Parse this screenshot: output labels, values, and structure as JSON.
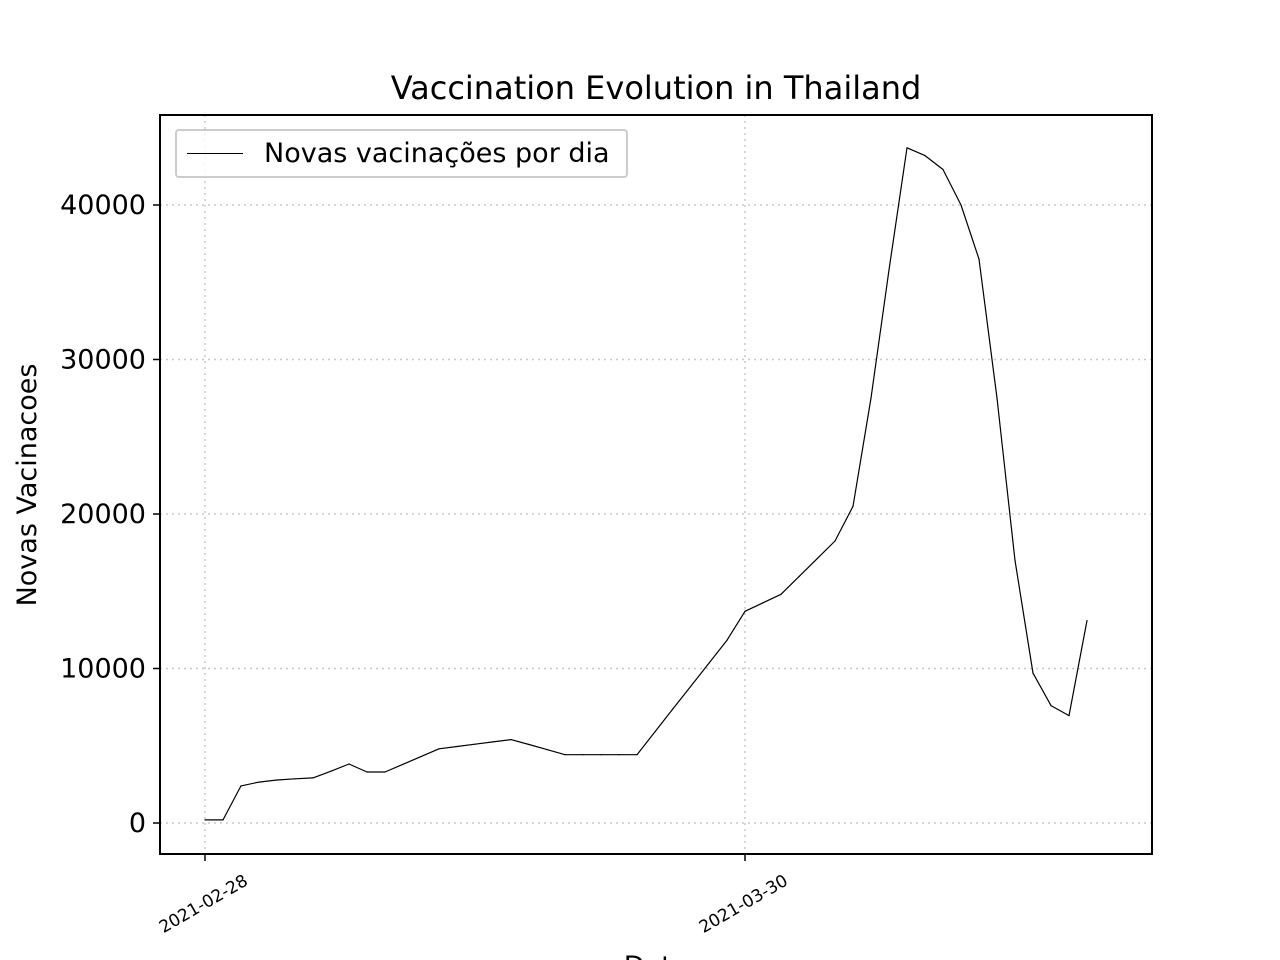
{
  "chart_data": {
    "type": "line",
    "title": "Vaccination Evolution in Thailand",
    "xlabel": "Data",
    "ylabel": "Novas Vacinacoes",
    "x_tick_labels": [
      "2021-02-28",
      "2021-03-30"
    ],
    "y_tick_labels": [
      "0",
      "10000",
      "20000",
      "30000",
      "40000"
    ],
    "ylim": [
      -2000,
      45800
    ],
    "grid": true,
    "legend_position": "upper-left",
    "series": [
      {
        "name": "Novas vacinações por dia",
        "color": "#000000",
        "points": [
          [
            "2021-02-28",
            200
          ],
          [
            "2021-03-01",
            200
          ],
          [
            "2021-03-02",
            2400
          ],
          [
            "2021-03-03",
            2650
          ],
          [
            "2021-03-04",
            2780
          ],
          [
            "2021-03-05",
            2860
          ],
          [
            "2021-03-06",
            2920
          ],
          [
            "2021-03-07",
            3350
          ],
          [
            "2021-03-08",
            3820
          ],
          [
            "2021-03-09",
            3300
          ],
          [
            "2021-03-10",
            3300
          ],
          [
            "2021-03-11",
            3800
          ],
          [
            "2021-03-12",
            4300
          ],
          [
            "2021-03-13",
            4800
          ],
          [
            "2021-03-14",
            4950
          ],
          [
            "2021-03-15",
            5100
          ],
          [
            "2021-03-16",
            5250
          ],
          [
            "2021-03-17",
            5400
          ],
          [
            "2021-03-18",
            5080
          ],
          [
            "2021-03-19",
            4750
          ],
          [
            "2021-03-20",
            4420
          ],
          [
            "2021-03-21",
            4420
          ],
          [
            "2021-03-22",
            4420
          ],
          [
            "2021-03-23",
            4420
          ],
          [
            "2021-03-24",
            4420
          ],
          [
            "2021-03-25",
            5900
          ],
          [
            "2021-03-26",
            7400
          ],
          [
            "2021-03-27",
            8870
          ],
          [
            "2021-03-28",
            10350
          ],
          [
            "2021-03-29",
            11830
          ],
          [
            "2021-03-30",
            13700
          ],
          [
            "2021-03-31",
            14250
          ],
          [
            "2021-04-01",
            14800
          ],
          [
            "2021-04-02",
            15950
          ],
          [
            "2021-04-03",
            17100
          ],
          [
            "2021-04-04",
            18250
          ],
          [
            "2021-04-05",
            20500
          ],
          [
            "2021-04-06",
            27500
          ],
          [
            "2021-04-07",
            35800
          ],
          [
            "2021-04-08",
            43700
          ],
          [
            "2021-04-09",
            43200
          ],
          [
            "2021-04-10",
            42300
          ],
          [
            "2021-04-11",
            40000
          ],
          [
            "2021-04-12",
            36500
          ],
          [
            "2021-04-13",
            27500
          ],
          [
            "2021-04-14",
            17000
          ],
          [
            "2021-04-15",
            9700
          ],
          [
            "2021-04-16",
            7600
          ],
          [
            "2021-04-17",
            6950
          ],
          [
            "2021-04-18",
            13100
          ]
        ]
      }
    ]
  }
}
